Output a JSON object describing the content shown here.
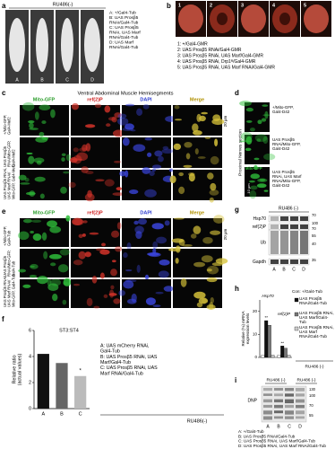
{
  "panel_a": {
    "label": "a",
    "condition": "RU486(-)",
    "sample_labels": [
      "A",
      "B",
      "C",
      "D"
    ],
    "legend": [
      "A: +/Gal4-Tub",
      "B: UAS Prosβ5",
      "RNAi/Gal4-Tub",
      "C: UAS Prosβ5",
      "RNAi, UAS Marf",
      "RNAi/Gal4-Tub",
      "D: UAS Marf",
      "RNAi/Gal4-Tub"
    ]
  },
  "panel_b": {
    "label": "b",
    "image_labels": [
      "1",
      "2",
      "3",
      "4",
      "5"
    ],
    "legend": [
      "1: +/Gal4-GMR",
      "2: UAS Prosβ5 RNAi/Gal4-GMR",
      "3: UAS Prosβ5 RNAi, UAS Marf/Gal4-GMR",
      "4: UAS Prosβ5 RNAi, Drp1ᴿ/Gal4-GMR",
      "5: UAS Prosβ5 RNAi, UAS Marf RNAi/Gal4-GMR"
    ]
  },
  "panel_c": {
    "label": "c",
    "title": "Ventral Abdominal Muscle Hemisegments",
    "channels": [
      "Mito-GFP",
      "ref(2)P",
      "DAPI",
      "Merge"
    ],
    "scale": "20 μm",
    "rows": [
      [
        "+/Mito-GFP,",
        "Gal4-Mef2"
      ],
      [
        "UAS Prosβ5",
        "RNAi/Mito-GFP,",
        "Gal4-Mef2"
      ],
      [
        "UAS Prosβ5 RNAi,",
        "UAS Marf RNAi/",
        "Mito-GFP, Gal4-Mef2"
      ]
    ]
  },
  "panel_d": {
    "label": "d",
    "section": "Proximal Nerves section",
    "channel": "Mito-GFP",
    "scale": "10 μm",
    "rows": [
      [
        "+/Mito-GFP,",
        "Gal4-D42"
      ],
      [
        "UAS Prosβ5",
        "RNAi/Mito-GFP,",
        "Gal4-D42"
      ],
      [
        "UAS Prosβ5",
        "RNAi, UAS Marf",
        "RNAi/Mito-GFP,",
        "Gal4-D42"
      ]
    ]
  },
  "panel_e": {
    "label": "e",
    "channels": [
      "Mito-GFP",
      "ref(2)P",
      "DAPI",
      "Merge"
    ],
    "scale": "20 μm",
    "rows": [
      [
        "+/Mito-GFP,",
        "Gal4-Tub"
      ],
      [
        "UAS Prosβ5",
        "RNAi/Mito-GFP,",
        "Gal4-Tub"
      ],
      [
        "UAS Prosβ5 RNAi,",
        "UAS Marf RNAi/",
        "Mito-GFP, Gal4-Tub"
      ]
    ]
  },
  "panel_f": {
    "label": "f",
    "condition": "RU486(-)",
    "legend": [
      "A: UAS mCherry RNAi,",
      "Gal4-Tub",
      "B: UAS Prosβ5 RNAi, UAS",
      "Marf/Gal4-Tub",
      "C: UAS Prosβ5 RNAi, UAS",
      "Marf RNAi/Gal4-Tub"
    ],
    "chart_data": {
      "type": "bar",
      "title": "ST3:ST4",
      "y_label": [
        "Relative ratio",
        "(actual values)"
      ],
      "categories": [
        "A",
        "B",
        "C"
      ],
      "values": [
        4.2,
        3.5,
        2.5
      ],
      "colors": [
        "#111111",
        "#666666",
        "#bbbbbb"
      ],
      "annotation": "*",
      "ylim": [
        0,
        6
      ],
      "yticks": [
        0,
        2,
        4,
        6
      ]
    }
  },
  "panel_g": {
    "label": "g",
    "condition": "RU486 (-)",
    "proteins": [
      "Hsp70",
      "ref(2)P",
      "Ub",
      "Gapdh"
    ],
    "markers": [
      "70",
      "100",
      "70",
      "55",
      "40",
      "35"
    ],
    "lanes": [
      "A",
      "B",
      "C",
      "D"
    ]
  },
  "panel_h": {
    "label": "h",
    "condition": "RU486 (-)",
    "chart_data": {
      "type": "bar",
      "y_label": [
        "Relative (%) mRNA",
        "expression levels"
      ],
      "categories": [
        "Hsp70",
        "ref(2)P"
      ],
      "series": [
        {
          "name": "Con: +/Gal4-Tub",
          "color": "#ffffff",
          "values": [
            1,
            1
          ]
        },
        {
          "name": "UAS Prosβ5 RNAi/Gal4-Tub",
          "color": "#111111",
          "values": [
            16,
            5
          ]
        },
        {
          "name": "UAS Prosβ5 RNAi, UAS Marf/Gal4-Tub",
          "color": "#777777",
          "values": [
            14,
            4
          ]
        },
        {
          "name": "UAS Prosβ5 RNAi, UAS Marf RNAi/Gal4-Tub",
          "color": "#cccccc",
          "values": [
            1,
            1
          ]
        }
      ],
      "annotations": [
        "**",
        "**"
      ],
      "ylim": [
        0,
        25
      ],
      "yticks": [
        0,
        10,
        20
      ]
    }
  },
  "panel_i": {
    "label": "i",
    "conditions": [
      "RU486 (-)",
      "RU486 (-)"
    ],
    "protein": "DNP",
    "markers": [
      "130",
      "100",
      "70",
      "55"
    ],
    "lanes": [
      "A",
      "B",
      "C",
      "D"
    ],
    "legend": [
      "A: +/Gal4-Tub",
      "B: UAS Prosβ5 RNAi/Gal4-Tub",
      "C: UAS Prosβ5 RNAi, UAS Marf/Gal4-Tub",
      "D: UAS Prosβ5 RNAi, UAS Marf RNAi/Gal4-Tub"
    ]
  }
}
